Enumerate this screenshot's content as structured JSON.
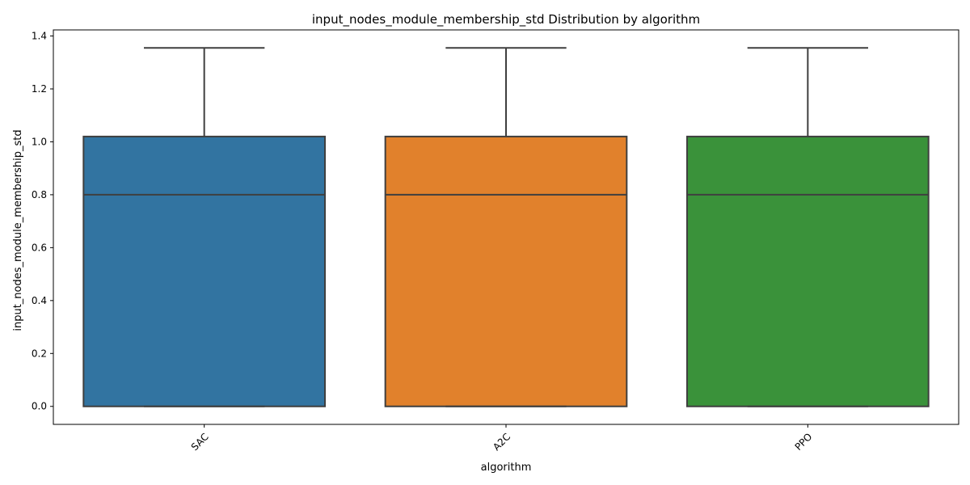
{
  "chart_data": {
    "type": "box",
    "title": "input_nodes_module_membership_std Distribution by algorithm",
    "xlabel": "algorithm",
    "ylabel": "input_nodes_module_membership_std",
    "categories": [
      "SAC",
      "A2C",
      "PPO"
    ],
    "boxes": [
      {
        "category": "SAC",
        "whislo": 0.0,
        "q1": 0.0,
        "median": 0.8,
        "q3": 1.02,
        "whishi": 1.355,
        "color": "#3274a1"
      },
      {
        "category": "A2C",
        "whislo": 0.0,
        "q1": 0.0,
        "median": 0.8,
        "q3": 1.02,
        "whishi": 1.355,
        "color": "#e1812c"
      },
      {
        "category": "PPO",
        "whislo": 0.0,
        "q1": 0.0,
        "median": 0.8,
        "q3": 1.02,
        "whishi": 1.355,
        "color": "#3a923a"
      }
    ],
    "ylim": [
      -0.068,
      1.423
    ],
    "yticks": [
      0.0,
      0.2,
      0.4,
      0.6,
      0.8,
      1.0,
      1.2,
      1.4
    ],
    "ytick_labels": [
      "0.0",
      "0.2",
      "0.4",
      "0.6",
      "0.8",
      "1.0",
      "1.2",
      "1.4"
    ],
    "xtick_rotation": 45,
    "grid": false,
    "legend": "none",
    "line_color": "#3f3f3f"
  }
}
